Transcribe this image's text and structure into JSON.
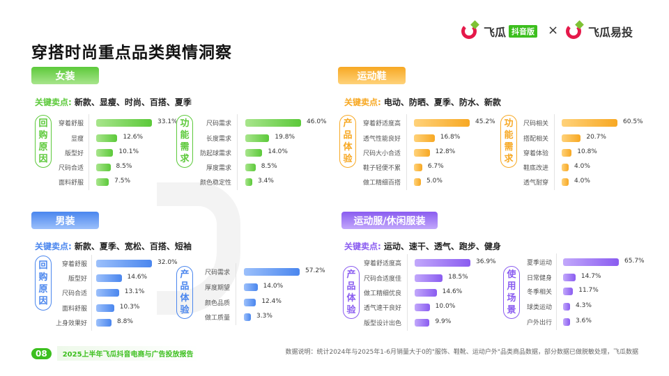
{
  "title": "穿搭时尚重点品类舆情洞察",
  "watermark": "飞瓜数据",
  "logos": {
    "left_name": "飞瓜",
    "left_badge": "抖音版",
    "times": "×",
    "right_name": "飞瓜易投"
  },
  "sections": [
    {
      "id": "women",
      "tag": "女装",
      "color": "#5cc93a",
      "light": "#a8e58c",
      "keypoints_label": "关键卖点:",
      "keypoints": "新款、显瘦、时尚、百搭、夏季",
      "groups": [
        {
          "pill": "回购原因",
          "rows": [
            {
              "label": "穿着舒服",
              "value": 33.1
            },
            {
              "label": "显瘦",
              "value": 12.6
            },
            {
              "label": "版型好",
              "value": 10.1
            },
            {
              "label": "尺码合适",
              "value": 8.5
            },
            {
              "label": "面料舒服",
              "value": 7.5
            }
          ]
        },
        {
          "pill": "功能需求",
          "rows": [
            {
              "label": "尺码需求",
              "value": 46.0
            },
            {
              "label": "长度需求",
              "value": 19.8
            },
            {
              "label": "防起球需求",
              "value": 14.0
            },
            {
              "label": "厚度需求",
              "value": 8.5
            },
            {
              "label": "颜色稳定性",
              "value": 3.4
            }
          ]
        }
      ]
    },
    {
      "id": "shoes",
      "tag": "运动鞋",
      "color": "#f7a823",
      "light": "#ffd27a",
      "keypoints_label": "关键卖点:",
      "keypoints": "电动、防晒、夏季、防水、新款",
      "groups": [
        {
          "pill": "产品体验",
          "rows": [
            {
              "label": "穿着舒适度高",
              "value": 45.2
            },
            {
              "label": "透气性能良好",
              "value": 16.8
            },
            {
              "label": "尺码大小合适",
              "value": 12.8
            },
            {
              "label": "鞋子轻便不累",
              "value": 6.7
            },
            {
              "label": "做工精细百搭",
              "value": 5.0
            }
          ]
        },
        {
          "pill": "功能需求",
          "rows": [
            {
              "label": "尺码相关",
              "value": 60.5
            },
            {
              "label": "搭配相关",
              "value": 20.7
            },
            {
              "label": "穿着体验",
              "value": 10.8
            },
            {
              "label": "鞋底改进",
              "value": 4.0
            },
            {
              "label": "透气耐穿",
              "value": 4.0
            }
          ]
        }
      ]
    },
    {
      "id": "men",
      "tag": "男装",
      "color": "#4a86ee",
      "light": "#9cc0fb",
      "keypoints_label": "关键卖点:",
      "keypoints": "新款、夏季、宽松、百搭、短袖",
      "groups": [
        {
          "pill": "回购原因",
          "rows": [
            {
              "label": "穿着舒服",
              "value": 32.0
            },
            {
              "label": "版型好",
              "value": 14.6
            },
            {
              "label": "尺码合适",
              "value": 13.1
            },
            {
              "label": "面料舒服",
              "value": 10.3
            },
            {
              "label": "上身效果好",
              "value": 8.8
            }
          ]
        },
        {
          "pill": "产品体验",
          "rows": [
            {
              "label": "尺码需求",
              "value": 57.2
            },
            {
              "label": "厚度期望",
              "value": 14.0
            },
            {
              "label": "颜色品质",
              "value": 12.4
            },
            {
              "label": "做工质量",
              "value": 3.3
            }
          ]
        }
      ]
    },
    {
      "id": "sportswear",
      "tag": "运动服/休闲服装",
      "color": "#8a5cf0",
      "light": "#c2a8fb",
      "keypoints_label": "关键卖点:",
      "keypoints": "运动、速干、透气、跑步、健身",
      "groups": [
        {
          "pill": "产品体验",
          "rows": [
            {
              "label": "穿着舒适度高",
              "value": 36.9
            },
            {
              "label": "尺码合适度佳",
              "value": 18.5
            },
            {
              "label": "做工精细优良",
              "value": 14.6
            },
            {
              "label": "透气速干良好",
              "value": 10.0
            },
            {
              "label": "版型设计出色",
              "value": 9.9
            }
          ]
        },
        {
          "pill": "使用场景",
          "rows": [
            {
              "label": "夏季运动",
              "value": 65.7
            },
            {
              "label": "日常健身",
              "value": 14.7
            },
            {
              "label": "冬季相关",
              "value": 11.7
            },
            {
              "label": "球类运动",
              "value": 4.3
            },
            {
              "label": "户外出行",
              "value": 3.6
            }
          ]
        }
      ]
    }
  ],
  "footer": {
    "page": "08",
    "report": "2025上半年飞瓜抖音电商与广告投放报告",
    "note": "数据说明：统计2024年与2025年1-6月销量大于0的\"服饰、鞋靴、运动户外\"品类商品数据，部分数据已做脱敏处理，飞瓜数据"
  }
}
